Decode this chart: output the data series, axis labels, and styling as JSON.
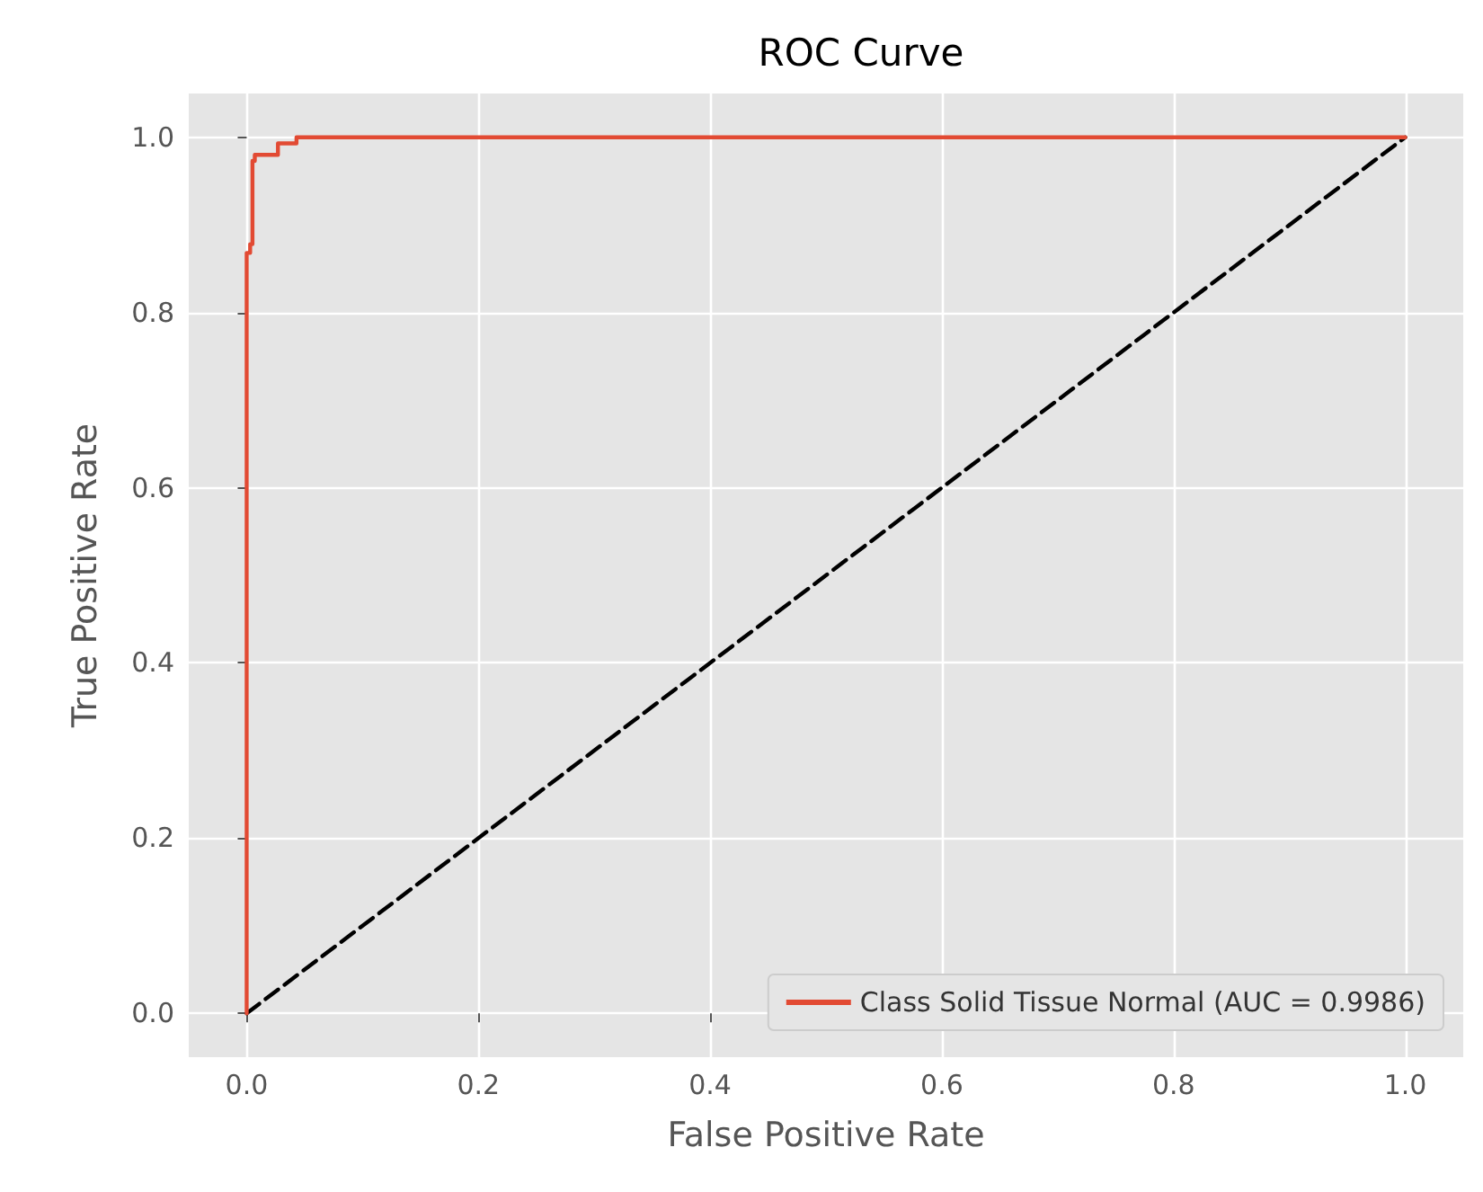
{
  "chart_data": {
    "type": "line",
    "title": "ROC Curve",
    "xlabel": "False Positive Rate",
    "ylabel": "True Positive Rate",
    "series": [
      {
        "name": "Class Solid Tissue Normal (AUC = 0.9986)",
        "color": "#e24a33",
        "line_style": "solid",
        "x": [
          0,
          0,
          0.003,
          0.003,
          0.005,
          0.005,
          0.007,
          0.007,
          0.027,
          0.027,
          0.043,
          0.043,
          1
        ],
        "values": [
          0,
          0.868,
          0.868,
          0.878,
          0.878,
          0.973,
          0.973,
          0.98,
          0.98,
          0.993,
          0.993,
          1,
          1
        ]
      },
      {
        "color": "#000000",
        "line_style": "dashed",
        "x": [
          0,
          1
        ],
        "values": [
          0,
          1
        ]
      }
    ],
    "xlim": [
      -0.05,
      1.05
    ],
    "ylim": [
      -0.05,
      1.05
    ],
    "xticks": [
      {
        "value": 0,
        "label": "0.0"
      },
      0.2,
      0.4,
      0.6,
      0.8,
      {
        "value": 1,
        "label": "1.0"
      }
    ],
    "yticks": [
      {
        "value": 0,
        "label": "0.0"
      },
      0.2,
      0.4,
      0.6,
      0.8,
      {
        "value": 1,
        "label": "1.0"
      }
    ],
    "grid": true,
    "legend": "bottom right",
    "marker": "none"
  }
}
